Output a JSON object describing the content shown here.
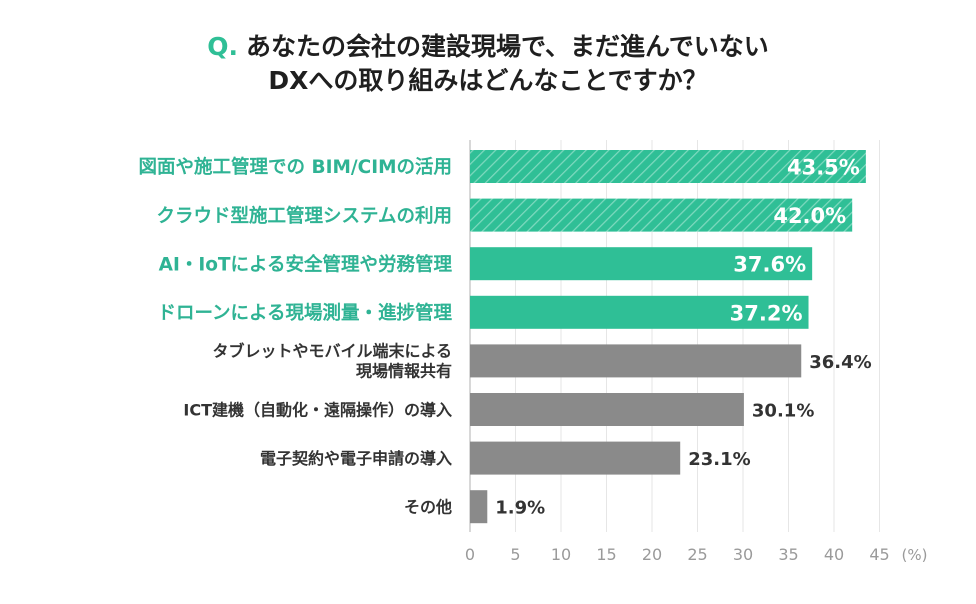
{
  "title": {
    "prefix": "Q.",
    "line1": "あなたの会社の建設現場で、まだ進んでいない",
    "line2": "DXへの取り組みはどんなことですか？"
  },
  "colors": {
    "accent": "#2fbf96",
    "accent_text": "#2fb394",
    "gray": "#8a8a8a",
    "gray_text": "#333333",
    "grid": "#e6e6e6"
  },
  "chart_data": {
    "type": "bar",
    "orientation": "horizontal",
    "categories": [
      [
        "図面や施工管理での BIM/CIMの活用"
      ],
      [
        "クラウド型施工管理システムの利用"
      ],
      [
        "AI・IoTによる安全管理や労務管理"
      ],
      [
        "ドローンによる現場測量・進捗管理"
      ],
      [
        "タブレットやモバイル端末による",
        "現場情報共有"
      ],
      [
        "ICT建機（自動化・遠隔操作）の導入"
      ],
      [
        "電子契約や電子申請の導入"
      ],
      [
        "その他"
      ]
    ],
    "values": [
      43.5,
      42.0,
      37.6,
      37.2,
      36.4,
      30.1,
      23.1,
      1.9
    ],
    "value_labels": [
      "43.5%",
      "42.0%",
      "37.6%",
      "37.2%",
      "36.4%",
      "30.1%",
      "23.1%",
      "1.9%"
    ],
    "styles": [
      "hatched",
      "hatched",
      "solid-accent",
      "solid-accent",
      "gray",
      "gray",
      "gray",
      "gray"
    ],
    "x_ticks": [
      0,
      5,
      10,
      15,
      20,
      25,
      30,
      35,
      40,
      45
    ],
    "x_unit": "(%)",
    "xlim": [
      0,
      45
    ],
    "grid": true
  }
}
